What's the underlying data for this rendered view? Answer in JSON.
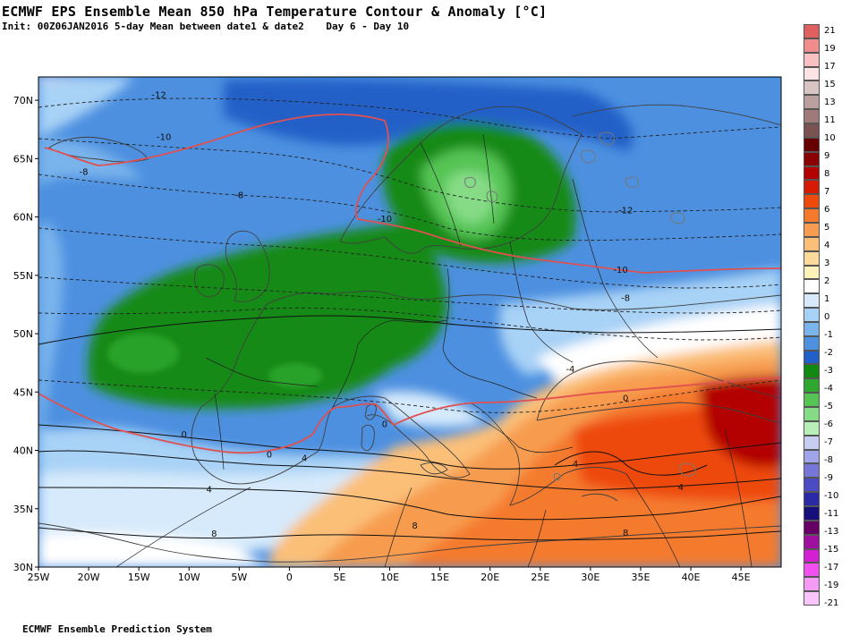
{
  "header": {
    "title": "ECMWF EPS Ensemble Mean 850 hPa Temperature Contour & Anomaly [°C]",
    "init": "Init: 00Z06JAN2016 5-day Mean between date1 & date2",
    "days": "Day 6 - Day 10"
  },
  "footer": {
    "text": "ECMWF Ensemble Prediction System"
  },
  "map": {
    "lon_range": [
      -25,
      49
    ],
    "lat_range": [
      30,
      72
    ],
    "lat_ticks": [
      {
        "value": 70,
        "label": "70N"
      },
      {
        "value": 65,
        "label": "65N"
      },
      {
        "value": 60,
        "label": "60N"
      },
      {
        "value": 55,
        "label": "55N"
      },
      {
        "value": 50,
        "label": "50N"
      },
      {
        "value": 45,
        "label": "45N"
      },
      {
        "value": 40,
        "label": "40N"
      },
      {
        "value": 35,
        "label": "35N"
      },
      {
        "value": 30,
        "label": "30N"
      }
    ],
    "lon_ticks": [
      {
        "value": -25,
        "label": "25W"
      },
      {
        "value": -20,
        "label": "20W"
      },
      {
        "value": -15,
        "label": "15W"
      },
      {
        "value": -10,
        "label": "10W"
      },
      {
        "value": -5,
        "label": "5W"
      },
      {
        "value": 0,
        "label": "0"
      },
      {
        "value": 5,
        "label": "5E"
      },
      {
        "value": 10,
        "label": "10E"
      },
      {
        "value": 15,
        "label": "15E"
      },
      {
        "value": 20,
        "label": "20E"
      },
      {
        "value": 25,
        "label": "25E"
      },
      {
        "value": 30,
        "label": "30E"
      },
      {
        "value": 35,
        "label": "35E"
      },
      {
        "value": 40,
        "label": "40E"
      },
      {
        "value": 45,
        "label": "45E"
      }
    ],
    "contour_labels": [
      {
        "text": "-12",
        "lon": -13,
        "lat": 70.2
      },
      {
        "text": "-10",
        "lon": -12.5,
        "lat": 66.6
      },
      {
        "text": "-8",
        "lon": -20.5,
        "lat": 63.6
      },
      {
        "text": "-8",
        "lon": -5,
        "lat": 61.6
      },
      {
        "text": "-10",
        "lon": 9.5,
        "lat": 59.6
      },
      {
        "text": "-12",
        "lon": 33.5,
        "lat": 60.3
      },
      {
        "text": "-10",
        "lon": 33,
        "lat": 55.2
      },
      {
        "text": "-8",
        "lon": 33.5,
        "lat": 52.8
      },
      {
        "text": "-4",
        "lon": 28,
        "lat": 46.7
      },
      {
        "text": "0",
        "lon": 33.5,
        "lat": 44.2
      },
      {
        "text": "0",
        "lon": 9.5,
        "lat": 42.0
      },
      {
        "text": "0",
        "lon": -10.5,
        "lat": 41.1
      },
      {
        "text": "0",
        "lon": -2,
        "lat": 39.4
      },
      {
        "text": "4",
        "lon": 1.5,
        "lat": 39.1
      },
      {
        "text": "4",
        "lon": 28.5,
        "lat": 38.6
      },
      {
        "text": "4",
        "lon": -8,
        "lat": 36.4
      },
      {
        "text": "4",
        "lon": 39,
        "lat": 36.6
      },
      {
        "text": "8",
        "lon": -7.5,
        "lat": 32.6
      },
      {
        "text": "8",
        "lon": 12.5,
        "lat": 33.3
      },
      {
        "text": "8",
        "lon": 33.5,
        "lat": 32.7
      }
    ]
  },
  "colorbar": {
    "colors": [
      "#e06060",
      "#f08c8c",
      "#f8c0c0",
      "#fde4e4",
      "#d9c4c4",
      "#bb9e9e",
      "#9e7a7a",
      "#7a5252",
      "#660000",
      "#8b0000",
      "#b30000",
      "#d61b00",
      "#ee4a0c",
      "#f47a2e",
      "#f79c50",
      "#fbbf78",
      "#fcda9b",
      "#fff2b8",
      "#ffffff",
      "#d6eafb",
      "#a8d2f6",
      "#7ab4ec",
      "#4d90e0",
      "#2060c8",
      "#128a12",
      "#2ea82e",
      "#55c455",
      "#86dc86",
      "#b8eeb8",
      "#c8cdf2",
      "#a0a4e8",
      "#7676d8",
      "#4b4bc4",
      "#2a2aa8",
      "#160f7c",
      "#660066",
      "#a010a0",
      "#d220d2",
      "#f050f0",
      "#f59af5",
      "#f9c4f9"
    ],
    "labels": [
      "21",
      "19",
      "17",
      "15",
      "13",
      "11",
      "10",
      "9",
      "8",
      "7",
      "6",
      "5",
      "4",
      "3",
      "2",
      "1",
      "0",
      "-1",
      "-2",
      "-3",
      "-4",
      "-5",
      "-6",
      "-7",
      "-8",
      "-9",
      "-10",
      "-11",
      "-13",
      "-15",
      "-17",
      "-19",
      "-21"
    ]
  }
}
